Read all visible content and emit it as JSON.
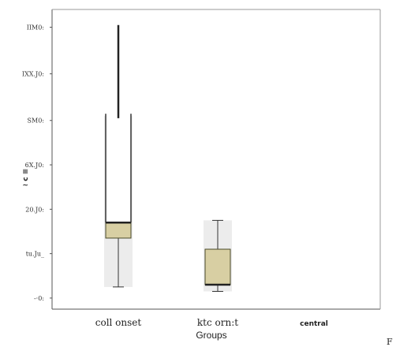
{
  "chart_data": {
    "type": "box",
    "xlabel": "Groups",
    "ylabel": "≀ c ≡",
    "yticks": [
      "IIM0:",
      "IXX.J0:",
      "SM0:",
      "6X.J0:",
      "20.J0:",
      "tu.Ju_",
      "-·0:"
    ],
    "ytick_values": [
      122,
      101,
      80,
      60,
      40,
      20,
      0
    ],
    "ylim": [
      -5,
      130
    ],
    "categories": [
      "coll onset",
      "ktc orn:t",
      "central"
    ],
    "boxes": [
      {
        "category": "coll onset",
        "whisker_low": 5,
        "q1": 27,
        "median": 34,
        "q3": 34,
        "whisker_high": 83,
        "outlier_segment": [
          81,
          123
        ],
        "background_range": [
          5,
          82
        ]
      },
      {
        "category": "ktc orn:t",
        "whisker_low": 3,
        "q1": 6,
        "median": 6,
        "q3": 22,
        "whisker_high": 35,
        "background_range": [
          3,
          35
        ]
      },
      {
        "category": "central"
      }
    ],
    "colors": {
      "box_fill": "#d8cfa3",
      "box_stroke": "#4a4a2a",
      "background": "#ececec",
      "whisker": "#333333"
    },
    "grid": false,
    "legend": "none"
  },
  "corner_label": "F"
}
